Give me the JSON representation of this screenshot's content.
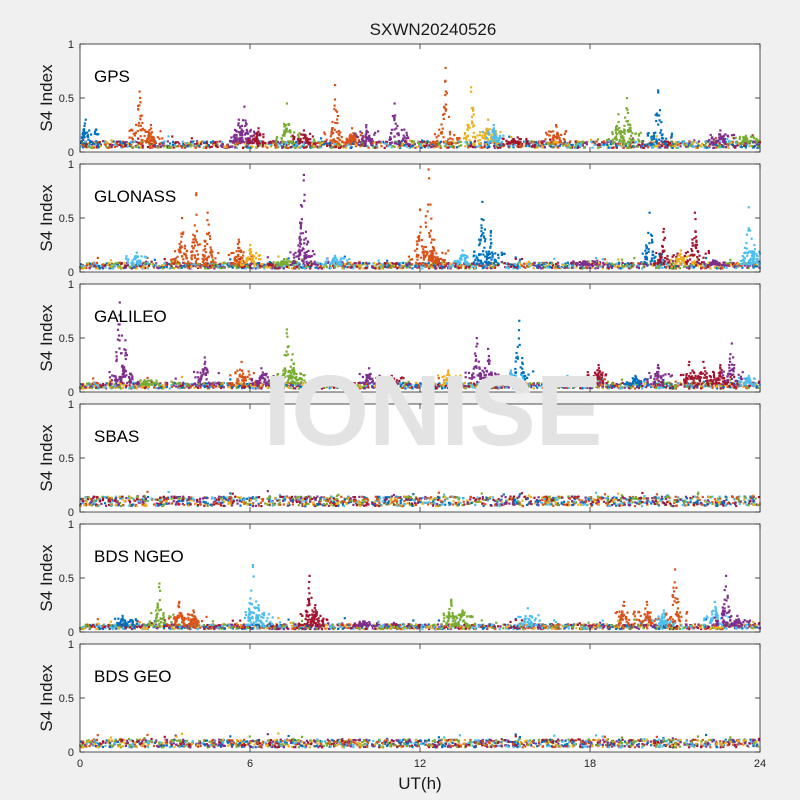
{
  "figure": {
    "title": "SXWN20240526",
    "xlabel": "UT(h)",
    "watermark": "IONISE"
  },
  "colors": {
    "background": "#f0f0f0",
    "axes_background": "#ffffff",
    "axis": "#262626",
    "watermark": "#e3e3e3",
    "series": [
      "#0072bd",
      "#d95319",
      "#edb120",
      "#7e2f8e",
      "#77ac30",
      "#4dbeee",
      "#a2142f"
    ]
  },
  "chart_data": [
    {
      "type": "scatter",
      "label": "GPS",
      "ylabel": "S4 Index",
      "xlim": [
        0,
        24
      ],
      "ylim": [
        0,
        1
      ],
      "xticks": [
        0,
        6,
        12,
        18,
        24
      ],
      "yticks": [
        0,
        0.5,
        1
      ],
      "grid": false,
      "baseline": 0.07,
      "events": [
        [
          0.2,
          0.3,
          0
        ],
        [
          2.1,
          0.56,
          1
        ],
        [
          2.5,
          0.25,
          1
        ],
        [
          5.6,
          0.3,
          3
        ],
        [
          5.8,
          0.42,
          3
        ],
        [
          6.3,
          0.22,
          6
        ],
        [
          7.3,
          0.45,
          4
        ],
        [
          7.9,
          0.2,
          6
        ],
        [
          9.0,
          0.62,
          1
        ],
        [
          9.6,
          0.22,
          1
        ],
        [
          10.1,
          0.25,
          3
        ],
        [
          11.1,
          0.45,
          3
        ],
        [
          12.9,
          0.78,
          1
        ],
        [
          13.8,
          0.6,
          2
        ],
        [
          14.4,
          0.3,
          2
        ],
        [
          14.6,
          0.25,
          5
        ],
        [
          15.3,
          0.12,
          6
        ],
        [
          16.8,
          0.25,
          1
        ],
        [
          19.0,
          0.35,
          4
        ],
        [
          19.3,
          0.5,
          4
        ],
        [
          20.4,
          0.57,
          0
        ],
        [
          22.6,
          0.2,
          3
        ],
        [
          23.5,
          0.15,
          4
        ]
      ]
    },
    {
      "type": "scatter",
      "label": "GLONASS",
      "ylabel": "S4 Index",
      "xlim": [
        0,
        24
      ],
      "ylim": [
        0,
        1
      ],
      "xticks": [
        0,
        6,
        12,
        18,
        24
      ],
      "yticks": [
        0,
        0.5,
        1
      ],
      "grid": false,
      "baseline": 0.06,
      "events": [
        [
          2.0,
          0.18,
          5
        ],
        [
          3.6,
          0.5,
          1
        ],
        [
          4.1,
          0.73,
          1
        ],
        [
          4.5,
          0.55,
          1
        ],
        [
          5.6,
          0.3,
          1
        ],
        [
          6.0,
          0.25,
          2
        ],
        [
          7.2,
          0.12,
          4
        ],
        [
          7.8,
          0.62,
          3
        ],
        [
          7.9,
          0.9,
          3
        ],
        [
          9.0,
          0.15,
          5
        ],
        [
          12.0,
          0.58,
          1
        ],
        [
          12.3,
          0.95,
          1
        ],
        [
          12.5,
          0.3,
          1
        ],
        [
          13.5,
          0.2,
          5
        ],
        [
          14.2,
          0.65,
          0
        ],
        [
          14.5,
          0.38,
          0
        ],
        [
          17.8,
          0.1,
          3
        ],
        [
          20.1,
          0.55,
          0
        ],
        [
          20.6,
          0.4,
          6
        ],
        [
          21.2,
          0.2,
          2
        ],
        [
          21.7,
          0.55,
          6
        ],
        [
          22.4,
          0.1,
          3
        ],
        [
          23.6,
          0.6,
          5
        ],
        [
          23.8,
          0.25,
          5
        ]
      ]
    },
    {
      "type": "scatter",
      "label": "GALILEO",
      "ylabel": "S4 Index",
      "xlim": [
        0,
        24
      ],
      "ylim": [
        0,
        1
      ],
      "xticks": [
        0,
        6,
        12,
        18,
        24
      ],
      "yticks": [
        0,
        0.5,
        1
      ],
      "grid": false,
      "baseline": 0.06,
      "events": [
        [
          1.4,
          0.83,
          3
        ],
        [
          1.6,
          0.48,
          3
        ],
        [
          2.3,
          0.1,
          4
        ],
        [
          4.4,
          0.32,
          3
        ],
        [
          5.7,
          0.28,
          1
        ],
        [
          6.4,
          0.22,
          3
        ],
        [
          7.3,
          0.58,
          4
        ],
        [
          7.5,
          0.35,
          4
        ],
        [
          10.2,
          0.22,
          3
        ],
        [
          11.0,
          0.15,
          6
        ],
        [
          13.0,
          0.2,
          2
        ],
        [
          14.0,
          0.5,
          3
        ],
        [
          14.4,
          0.4,
          3
        ],
        [
          15.5,
          0.66,
          0
        ],
        [
          15.2,
          0.2,
          5
        ],
        [
          17.2,
          0.15,
          5
        ],
        [
          18.3,
          0.25,
          6
        ],
        [
          19.6,
          0.15,
          0
        ],
        [
          20.4,
          0.25,
          3
        ],
        [
          21.5,
          0.28,
          6
        ],
        [
          22.0,
          0.28,
          6
        ],
        [
          22.6,
          0.25,
          6
        ],
        [
          23.0,
          0.45,
          3
        ],
        [
          23.6,
          0.15,
          5
        ]
      ]
    },
    {
      "type": "scatter",
      "label": "SBAS",
      "ylabel": "S4 Index",
      "xlim": [
        0,
        24
      ],
      "ylim": [
        0,
        1
      ],
      "xticks": [
        0,
        6,
        12,
        18,
        24
      ],
      "yticks": [
        0,
        0.5,
        1
      ],
      "grid": false,
      "baseline": 0.1,
      "events": []
    },
    {
      "type": "scatter",
      "label": "BDS NGEO",
      "ylabel": "S4 Index",
      "xlim": [
        0,
        24
      ],
      "ylim": [
        0,
        1
      ],
      "xticks": [
        0,
        6,
        12,
        18,
        24
      ],
      "yticks": [
        0,
        0.5,
        1
      ],
      "grid": false,
      "baseline": 0.05,
      "events": [
        [
          1.5,
          0.15,
          0
        ],
        [
          2.8,
          0.45,
          4
        ],
        [
          3.5,
          0.28,
          1
        ],
        [
          4.0,
          0.2,
          1
        ],
        [
          6.1,
          0.62,
          5
        ],
        [
          6.3,
          0.25,
          5
        ],
        [
          8.1,
          0.52,
          6
        ],
        [
          8.3,
          0.25,
          6
        ],
        [
          10.0,
          0.1,
          3
        ],
        [
          13.1,
          0.3,
          4
        ],
        [
          13.5,
          0.2,
          4
        ],
        [
          15.8,
          0.22,
          5
        ],
        [
          19.2,
          0.28,
          1
        ],
        [
          20.0,
          0.28,
          1
        ],
        [
          20.6,
          0.2,
          5
        ],
        [
          21.0,
          0.58,
          1
        ],
        [
          22.4,
          0.28,
          5
        ],
        [
          22.8,
          0.52,
          3
        ],
        [
          23.2,
          0.15,
          3
        ]
      ]
    },
    {
      "type": "scatter",
      "label": "BDS GEO",
      "ylabel": "S4 Index",
      "xlim": [
        0,
        24
      ],
      "ylim": [
        0,
        1
      ],
      "xticks": [
        0,
        6,
        12,
        18,
        24
      ],
      "yticks": [
        0,
        0.5,
        1
      ],
      "grid": false,
      "baseline": 0.08,
      "events": []
    }
  ]
}
